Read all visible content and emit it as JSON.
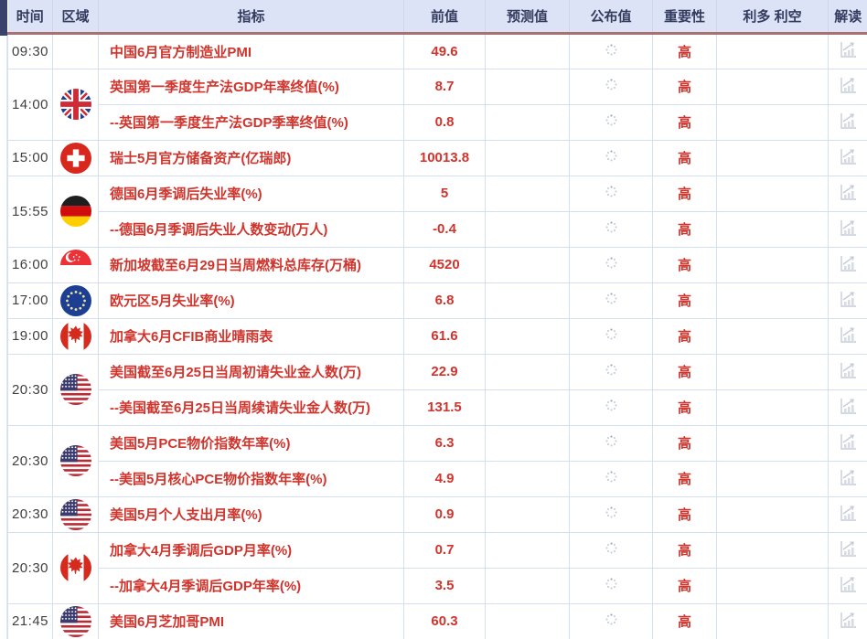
{
  "colors": {
    "accent_red": "#d0342c",
    "header_bg": "#dce3f6",
    "header_text": "#333b5e",
    "header_border": "#a87070",
    "grid_line": "#d5dff1",
    "time_text": "#3f3f3f",
    "icon_gray": "#c6ccd8",
    "header_gutter": "#39426a"
  },
  "header": {
    "columns": [
      "时间",
      "区域",
      "指标",
      "前值",
      "预测值",
      "公布值",
      "重要性",
      "利多 利空",
      "解读"
    ]
  },
  "icons": {
    "published_pending": "loading-spinner-icon",
    "analysis": "analysis-chart-icon"
  },
  "groups": [
    {
      "time": "09:30",
      "region_flag": "",
      "rows": [
        {
          "indicator": "中国6月官方制造业PMI",
          "previous": "49.6",
          "forecast": "",
          "published": "",
          "importance": "高",
          "bull_bear": ""
        }
      ]
    },
    {
      "time": "14:00",
      "region_flag": "uk",
      "rows": [
        {
          "indicator": "英国第一季度生产法GDP年率终值(%)",
          "previous": "8.7",
          "forecast": "",
          "published": "",
          "importance": "高",
          "bull_bear": ""
        },
        {
          "indicator": "--英国第一季度生产法GDP季率终值(%)",
          "previous": "0.8",
          "forecast": "",
          "published": "",
          "importance": "高",
          "bull_bear": ""
        }
      ]
    },
    {
      "time": "15:00",
      "region_flag": "switzerland",
      "rows": [
        {
          "indicator": "瑞士5月官方储备资产(亿瑞郎)",
          "previous": "10013.8",
          "forecast": "",
          "published": "",
          "importance": "高",
          "bull_bear": ""
        }
      ]
    },
    {
      "time": "15:55",
      "region_flag": "germany",
      "rows": [
        {
          "indicator": "德国6月季调后失业率(%)",
          "previous": "5",
          "forecast": "",
          "published": "",
          "importance": "高",
          "bull_bear": ""
        },
        {
          "indicator": "--德国6月季调后失业人数变动(万人)",
          "previous": "-0.4",
          "forecast": "",
          "published": "",
          "importance": "高",
          "bull_bear": ""
        }
      ]
    },
    {
      "time": "16:00",
      "region_flag": "singapore",
      "rows": [
        {
          "indicator": "新加坡截至6月29日当周燃料总库存(万桶)",
          "previous": "4520",
          "forecast": "",
          "published": "",
          "importance": "高",
          "bull_bear": ""
        }
      ]
    },
    {
      "time": "17:00",
      "region_flag": "eu",
      "rows": [
        {
          "indicator": "欧元区5月失业率(%)",
          "previous": "6.8",
          "forecast": "",
          "published": "",
          "importance": "高",
          "bull_bear": ""
        }
      ]
    },
    {
      "time": "19:00",
      "region_flag": "canada",
      "rows": [
        {
          "indicator": "加拿大6月CFIB商业晴雨表",
          "previous": "61.6",
          "forecast": "",
          "published": "",
          "importance": "高",
          "bull_bear": ""
        }
      ]
    },
    {
      "time": "20:30",
      "region_flag": "usa",
      "rows": [
        {
          "indicator": "美国截至6月25日当周初请失业金人数(万)",
          "previous": "22.9",
          "forecast": "",
          "published": "",
          "importance": "高",
          "bull_bear": ""
        },
        {
          "indicator": "--美国截至6月25日当周续请失业金人数(万)",
          "previous": "131.5",
          "forecast": "",
          "published": "",
          "importance": "高",
          "bull_bear": ""
        }
      ]
    },
    {
      "time": "20:30",
      "region_flag": "usa",
      "rows": [
        {
          "indicator": "美国5月PCE物价指数年率(%)",
          "previous": "6.3",
          "forecast": "",
          "published": "",
          "importance": "高",
          "bull_bear": ""
        },
        {
          "indicator": "--美国5月核心PCE物价指数年率(%)",
          "previous": "4.9",
          "forecast": "",
          "published": "",
          "importance": "高",
          "bull_bear": ""
        }
      ]
    },
    {
      "time": "20:30",
      "region_flag": "usa",
      "rows": [
        {
          "indicator": "美国5月个人支出月率(%)",
          "previous": "0.9",
          "forecast": "",
          "published": "",
          "importance": "高",
          "bull_bear": ""
        }
      ]
    },
    {
      "time": "20:30",
      "region_flag": "canada",
      "rows": [
        {
          "indicator": "加拿大4月季调后GDP月率(%)",
          "previous": "0.7",
          "forecast": "",
          "published": "",
          "importance": "高",
          "bull_bear": ""
        },
        {
          "indicator": "--加拿大4月季调后GDP年率(%)",
          "previous": "3.5",
          "forecast": "",
          "published": "",
          "importance": "高",
          "bull_bear": ""
        }
      ]
    },
    {
      "time": "21:45",
      "region_flag": "usa",
      "rows": [
        {
          "indicator": "美国6月芝加哥PMI",
          "previous": "60.3",
          "forecast": "",
          "published": "",
          "importance": "高",
          "bull_bear": ""
        }
      ]
    }
  ]
}
